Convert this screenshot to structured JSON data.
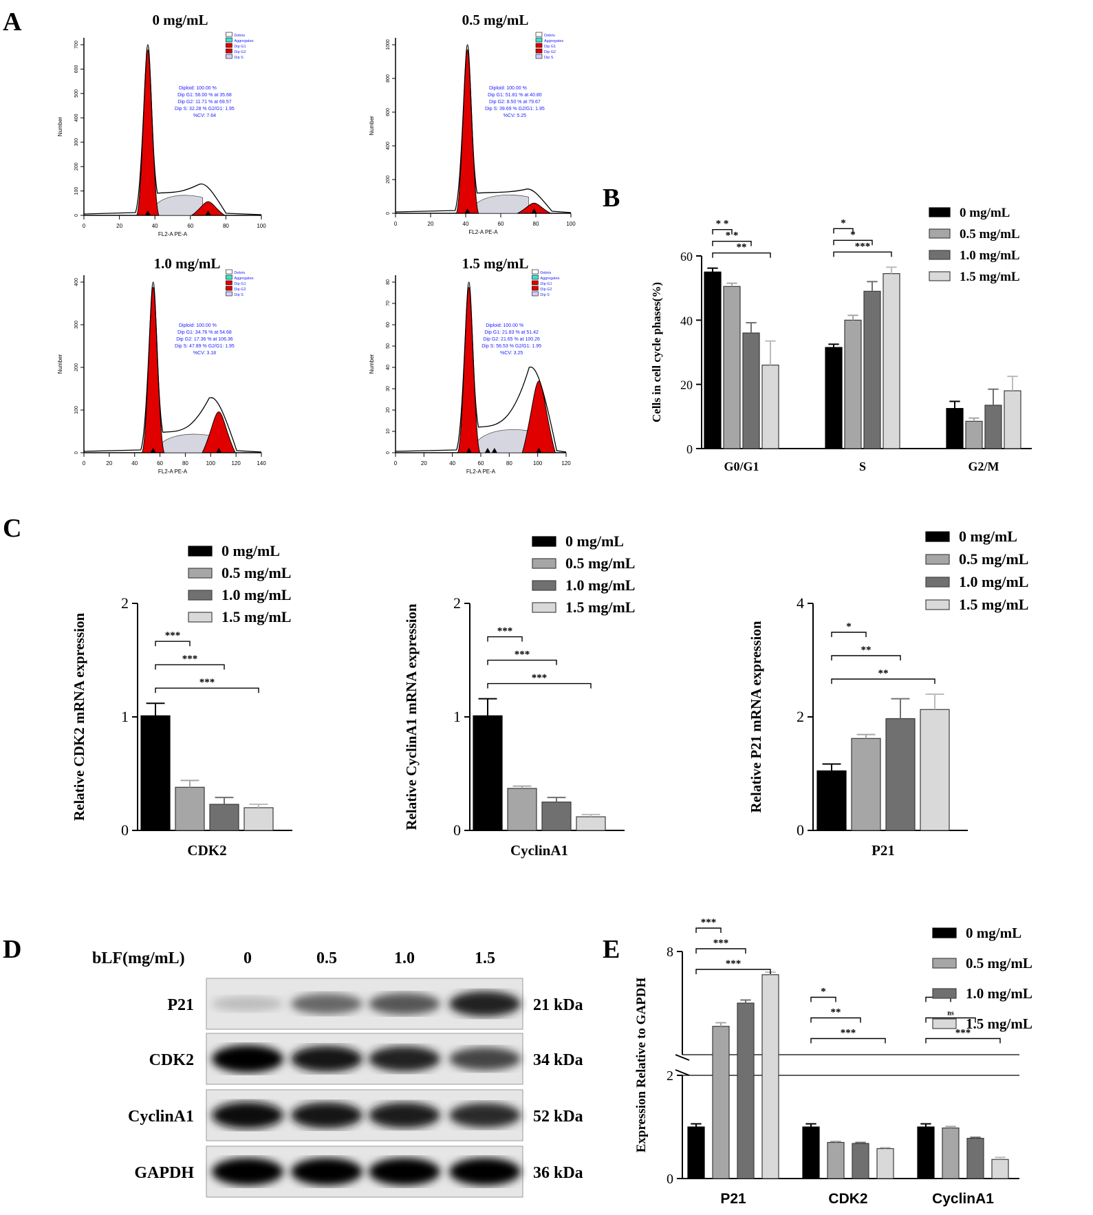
{
  "panel_labels": [
    "A",
    "B",
    "C",
    "D",
    "E"
  ],
  "colors": {
    "c0": "#000000",
    "c05": "#a6a6a6",
    "c10": "#707070",
    "c15": "#d9d9d9",
    "peak": "#e00000",
    "fcsText": "#1a1aff"
  },
  "flow": [
    {
      "title": "0 mg/mL",
      "stats": [
        "Diploid: 100.00 %",
        "Dip G1: 56.00 % at 35.68",
        "Dip G2: 11.71 % at 69.57",
        "Dip S: 32.28 %   G2/G1: 1.95",
        "%CV: 7.64"
      ],
      "xticks": [
        "0",
        "20",
        "40",
        "60",
        "80",
        "100"
      ],
      "yticks": [
        "0",
        "100",
        "200",
        "300",
        "400",
        "500",
        "600",
        "700"
      ],
      "xlabel": "FL2-A PE-A",
      "ylabel": "Number",
      "legend": [
        "Debris",
        "Aggregates",
        "Dip G1",
        "Dip G2",
        "Dip S"
      ]
    },
    {
      "title": "0.5 mg/mL",
      "stats": [
        "Diploid: 100.00 %",
        "Dip G1: 51.81 % at 40.80",
        "Dip G2: 8.50 % at 79.67",
        "Dip S: 39.69 %   G2/G1: 1.95",
        "%CV: 5.25"
      ],
      "xticks": [
        "0",
        "20",
        "40",
        "60",
        "80",
        "100"
      ],
      "yticks": [
        "0",
        "200",
        "400",
        "600",
        "800",
        "1000"
      ],
      "xlabel": "FL2-A PE-A",
      "ylabel": "Number",
      "legend": [
        "Debris",
        "Aggregates",
        "Dip G1",
        "Dip G2",
        "Dip S"
      ]
    },
    {
      "title": "1.0 mg/mL",
      "stats": [
        "Diploid: 100.00 %",
        "Dip G1: 34.76 % at 54.68",
        "Dip G2: 17.36 % at 106.36",
        "Dip S: 47.89 %   G2/G1: 1.95",
        "%CV: 3.18"
      ],
      "xticks": [
        "0",
        "20",
        "40",
        "60",
        "80",
        "100",
        "120",
        "140"
      ],
      "yticks": [
        "0",
        "100",
        "200",
        "300",
        "400"
      ],
      "xlabel": "FL2-A PE-A",
      "ylabel": "Number",
      "legend": [
        "Debris",
        "Aggregates",
        "Dip G1",
        "Dip G2",
        "Dip S"
      ]
    },
    {
      "title": "1.5 mg/mL",
      "stats": [
        "Diploid: 100.00 %",
        "Dip G1: 21.83 % at 51.42",
        "Dip G2: 21.65 % at 100.26",
        "Dip S: 56.53 %   G2/G1: 1.95",
        "%CV: 3.25"
      ],
      "xticks": [
        "0",
        "20",
        "40",
        "60",
        "80",
        "100",
        "120"
      ],
      "yticks": [
        "0",
        "10",
        "20",
        "30",
        "40",
        "50",
        "60",
        "70",
        "80"
      ],
      "xlabel": "FL2-A PE-A",
      "ylabel": "Number",
      "legend": [
        "Debris",
        "Aggregates",
        "Dip G1",
        "Dip G2",
        "Dip S"
      ]
    }
  ],
  "chart_data": [
    {
      "panel": "B",
      "type": "bar",
      "categories": [
        "G0/G1",
        "S",
        "G2/M"
      ],
      "ylabel": "Cells in cell cycle phases(%)",
      "ylim": [
        0,
        60
      ],
      "yticks": [
        "0",
        "20",
        "40",
        "60"
      ],
      "series": [
        {
          "name": "0 mg/mL",
          "values": [
            55,
            31.5,
            12.5
          ],
          "errors": [
            1.2,
            1.0,
            2.2
          ]
        },
        {
          "name": "0.5 mg/mL",
          "values": [
            50.5,
            40,
            8.5
          ],
          "errors": [
            1.0,
            1.5,
            1.0
          ]
        },
        {
          "name": "1.0 mg/mL",
          "values": [
            36,
            49,
            13.5
          ],
          "errors": [
            3.2,
            3.0,
            5.0
          ]
        },
        {
          "name": "1.5 mg/mL",
          "values": [
            26,
            54.5,
            18
          ],
          "errors": [
            7.5,
            2.0,
            4.5
          ]
        }
      ],
      "significance": [
        {
          "group": 0,
          "to": 1,
          "label": "* *"
        },
        {
          "group": 0,
          "to": 2,
          "label": "* *"
        },
        {
          "group": 0,
          "to": 3,
          "label": "**"
        },
        {
          "group": 1,
          "to": 1,
          "label": "*"
        },
        {
          "group": 1,
          "to": 2,
          "label": "*"
        },
        {
          "group": 1,
          "to": 3,
          "label": "***"
        }
      ],
      "legend": [
        "0 mg/mL",
        "0.5 mg/mL",
        "1.0 mg/mL",
        "1.5 mg/mL"
      ]
    },
    {
      "panel": "C1",
      "type": "bar",
      "categories": [
        "CDK2"
      ],
      "ylabel": "Relative CDK2 mRNA expression",
      "ylim": [
        0,
        2
      ],
      "yticks": [
        "0",
        "1",
        "2"
      ],
      "series": [
        {
          "name": "0 mg/mL",
          "values": [
            1.01
          ],
          "errors": [
            0.11
          ]
        },
        {
          "name": "0.5 mg/mL",
          "values": [
            0.38
          ],
          "errors": [
            0.06
          ]
        },
        {
          "name": "1.0 mg/mL",
          "values": [
            0.23
          ],
          "errors": [
            0.06
          ]
        },
        {
          "name": "1.5 mg/mL",
          "values": [
            0.2
          ],
          "errors": [
            0.03
          ]
        }
      ],
      "significance": [
        {
          "to": 1,
          "label": "***"
        },
        {
          "to": 2,
          "label": "***"
        },
        {
          "to": 3,
          "label": "***"
        }
      ],
      "legend": [
        "0 mg/mL",
        "0.5 mg/mL",
        "1.0 mg/mL",
        "1.5 mg/mL"
      ]
    },
    {
      "panel": "C2",
      "type": "bar",
      "categories": [
        "CyclinA1"
      ],
      "ylabel": "Relative CyclinA1 mRNA expression",
      "ylim": [
        0,
        2
      ],
      "yticks": [
        "0",
        "1",
        "2"
      ],
      "series": [
        {
          "name": "0 mg/mL",
          "values": [
            1.01
          ],
          "errors": [
            0.15
          ]
        },
        {
          "name": "0.5 mg/mL",
          "values": [
            0.37
          ],
          "errors": [
            0.02
          ]
        },
        {
          "name": "1.0 mg/mL",
          "values": [
            0.25
          ],
          "errors": [
            0.04
          ]
        },
        {
          "name": "1.5 mg/mL",
          "values": [
            0.12
          ],
          "errors": [
            0.02
          ]
        }
      ],
      "significance": [
        {
          "to": 1,
          "label": "***"
        },
        {
          "to": 2,
          "label": "***"
        },
        {
          "to": 3,
          "label": "***"
        }
      ],
      "legend": [
        "0 mg/mL",
        "0.5 mg/mL",
        "1.0 mg/mL",
        "1.5 mg/mL"
      ]
    },
    {
      "panel": "C3",
      "type": "bar",
      "categories": [
        "P21"
      ],
      "ylabel": "Relative  P21 mRNA expression",
      "ylim": [
        0,
        4
      ],
      "yticks": [
        "0",
        "2",
        "4"
      ],
      "series": [
        {
          "name": "0 mg/mL",
          "values": [
            1.05
          ],
          "errors": [
            0.12
          ]
        },
        {
          "name": "0.5 mg/mL",
          "values": [
            1.62
          ],
          "errors": [
            0.07
          ]
        },
        {
          "name": "1.0 mg/mL",
          "values": [
            1.97
          ],
          "errors": [
            0.35
          ]
        },
        {
          "name": "1.5 mg/mL",
          "values": [
            2.13
          ],
          "errors": [
            0.27
          ]
        }
      ],
      "significance": [
        {
          "to": 1,
          "label": "*"
        },
        {
          "to": 2,
          "label": "**"
        },
        {
          "to": 3,
          "label": "**"
        }
      ],
      "legend": [
        "0 mg/mL",
        "0.5 mg/mL",
        "1.0 mg/mL",
        "1.5 mg/mL"
      ]
    },
    {
      "panel": "E",
      "type": "bar",
      "categories": [
        "P21",
        "CDK2",
        "CyclinA1"
      ],
      "ylabel": "Expression Relative to GAPDH",
      "ylim": [
        0,
        8
      ],
      "ybreak": [
        2,
        6
      ],
      "yticks": [
        "0",
        "2",
        "8"
      ],
      "series": [
        {
          "name": "0 mg/mL",
          "values": [
            1.0,
            1.0,
            1.0
          ],
          "errors": [
            0.06,
            0.06,
            0.06
          ]
        },
        {
          "name": "0.5 mg/mL",
          "values": [
            6.55,
            0.7,
            0.98
          ],
          "errors": [
            0.07,
            0.02,
            0.03
          ]
        },
        {
          "name": "1.0 mg/mL",
          "values": [
            7.0,
            0.68,
            0.78
          ],
          "errors": [
            0.06,
            0.02,
            0.02
          ]
        },
        {
          "name": "1.5 mg/mL",
          "values": [
            7.55,
            0.58,
            0.37
          ],
          "errors": [
            0.05,
            0.02,
            0.04
          ]
        }
      ],
      "significance": [
        {
          "group": 0,
          "to": 1,
          "label": "***"
        },
        {
          "group": 0,
          "to": 2,
          "label": "***"
        },
        {
          "group": 0,
          "to": 3,
          "label": "***"
        },
        {
          "group": 1,
          "to": 1,
          "label": "*"
        },
        {
          "group": 1,
          "to": 2,
          "label": "**"
        },
        {
          "group": 1,
          "to": 3,
          "label": "***"
        },
        {
          "group": 2,
          "to": 1,
          "label": "ns"
        },
        {
          "group": 2,
          "to": 2,
          "label": "ns"
        },
        {
          "group": 2,
          "to": 3,
          "label": "***"
        }
      ],
      "legend": [
        "0 mg/mL",
        "0.5 mg/mL",
        "1.0 mg/mL",
        "1.5 mg/mL"
      ]
    }
  ],
  "western": {
    "header": "bLF(mg/mL)",
    "lanes": [
      "0",
      "0.5",
      "1.0",
      "1.5"
    ],
    "rows": [
      {
        "label": "P21",
        "kda": "21 kDa",
        "intensity": [
          0.18,
          0.55,
          0.62,
          0.85
        ]
      },
      {
        "label": "CDK2",
        "kda": "34 kDa",
        "intensity": [
          1.0,
          0.9,
          0.85,
          0.7
        ]
      },
      {
        "label": "CyclinA1",
        "kda": "52 kDa",
        "intensity": [
          0.95,
          0.9,
          0.88,
          0.82
        ]
      },
      {
        "label": "GAPDH",
        "kda": "36 kDa",
        "intensity": [
          1.0,
          1.0,
          1.0,
          1.0
        ]
      }
    ]
  }
}
